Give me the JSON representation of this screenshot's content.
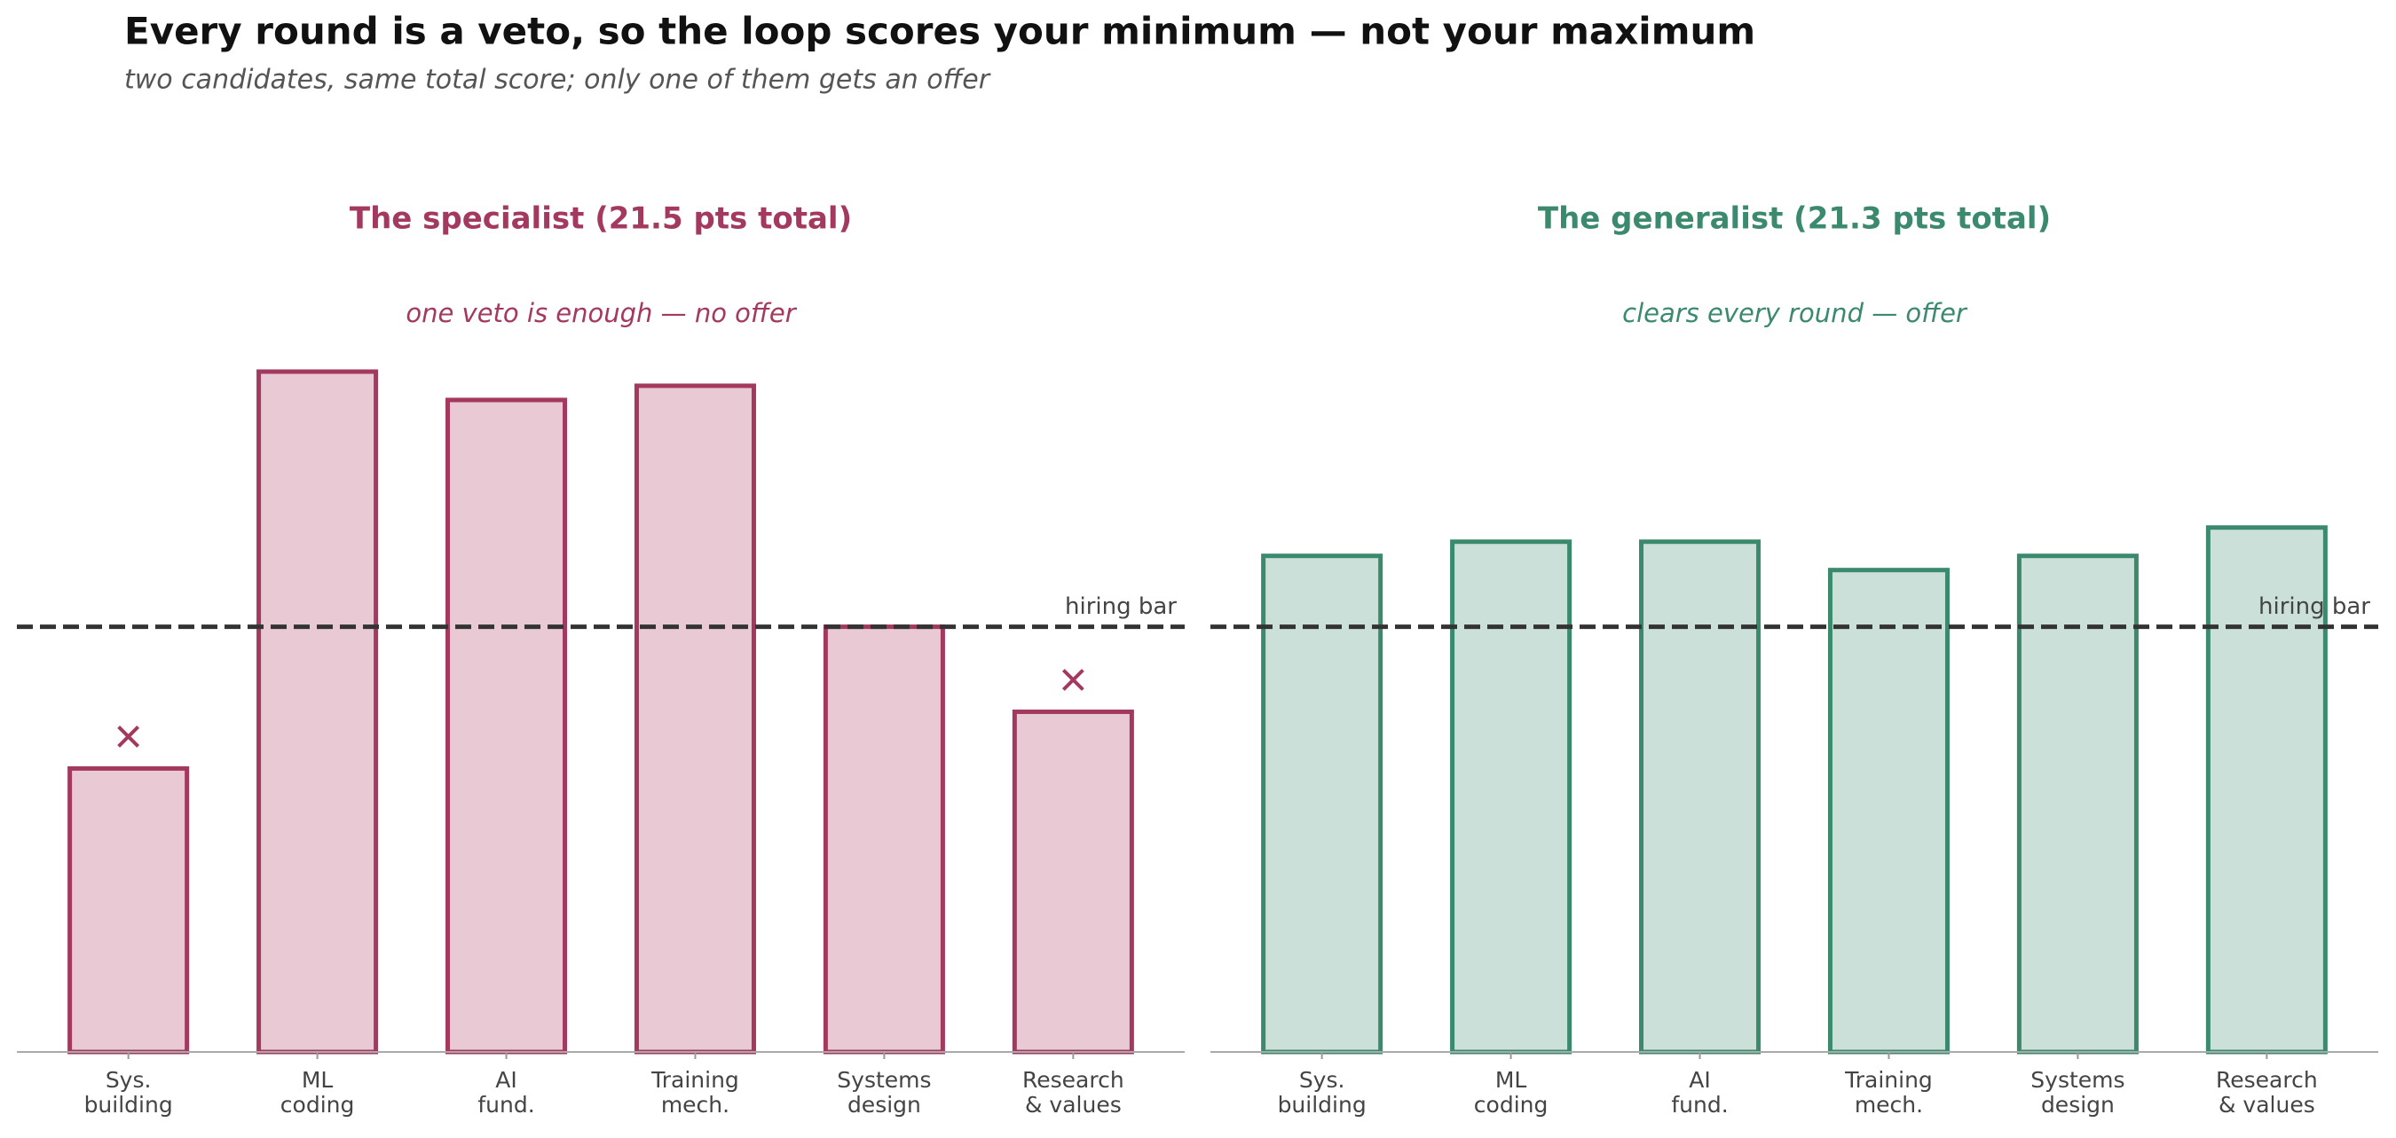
{
  "title": "Every round is a veto, so the loop scores your minimum — not your maximum",
  "subtitle": "two candidates, same total score; only one of them gets an offer",
  "chart_data": [
    {
      "type": "bar",
      "title": "The specialist   (21.5 pts total)",
      "subtitle": "one veto is enough — no offer",
      "categories": [
        "Sys.\nbuilding",
        "ML\ncoding",
        "AI\nfund.",
        "Training\nmech.",
        "Systems\ndesign",
        "Research\n& values"
      ],
      "values": [
        2.0,
        4.8,
        4.6,
        4.7,
        3.0,
        2.4
      ],
      "color": "#a3395f",
      "fill_color": "#e8c9d4",
      "threshold": {
        "value": 3.0,
        "label": "hiring bar"
      },
      "ylim": [
        0,
        5
      ]
    },
    {
      "type": "bar",
      "title": "The generalist   (21.3 pts total)",
      "subtitle": "clears every round — offer",
      "categories": [
        "Sys.\nbuilding",
        "ML\ncoding",
        "AI\nfund.",
        "Training\nmech.",
        "Systems\ndesign",
        "Research\n& values"
      ],
      "values": [
        3.5,
        3.6,
        3.6,
        3.4,
        3.5,
        3.7
      ],
      "color": "#3b8a6e",
      "fill_color": "#cae0d8",
      "threshold": {
        "value": 3.0,
        "label": "hiring bar"
      },
      "ylim": [
        0,
        5
      ]
    }
  ]
}
